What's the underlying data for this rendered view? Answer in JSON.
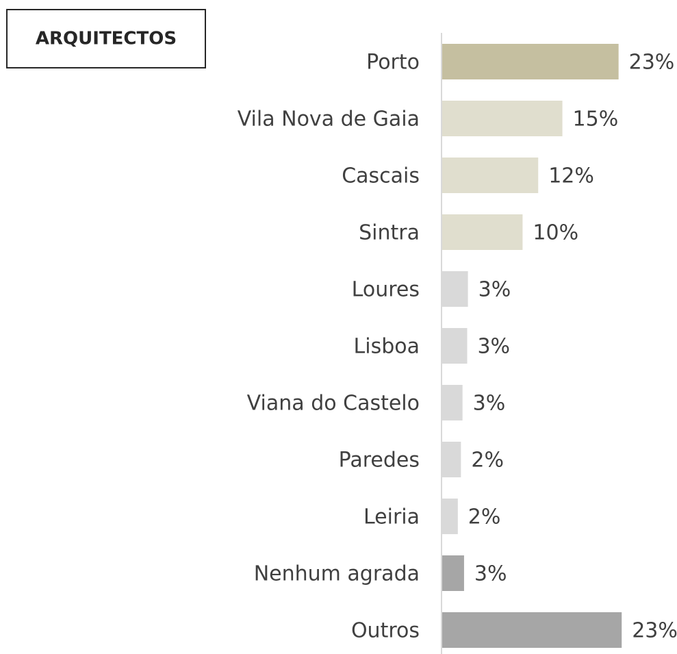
{
  "chart_data": {
    "type": "hbar",
    "title": "ARQUITECTOS",
    "categories": [
      "Porto",
      "Vila Nova de Gaia",
      "Cascais",
      "Sintra",
      "Loures",
      "Lisboa",
      "Viana do Castelo",
      "Paredes",
      "Leiria",
      "Nenhum agrada",
      "Outros"
    ],
    "values": [
      22.6,
      15.4,
      12.3,
      10.3,
      3.3,
      3.2,
      2.6,
      2.4,
      2.0,
      2.8,
      23.0
    ],
    "value_labels": [
      "23%",
      "15%",
      "12%",
      "10%",
      "3%",
      "3%",
      "3%",
      "2%",
      "2%",
      "3%",
      "23%"
    ],
    "colors": [
      "#c5bfa0",
      "#e0dece",
      "#e0dece",
      "#e0dece",
      "#d9d9d9",
      "#d9d9d9",
      "#d9d9d9",
      "#d9d9d9",
      "#d9d9d9",
      "#a6a6a6",
      "#a6a6a6"
    ],
    "xlim": [
      0,
      30
    ]
  }
}
